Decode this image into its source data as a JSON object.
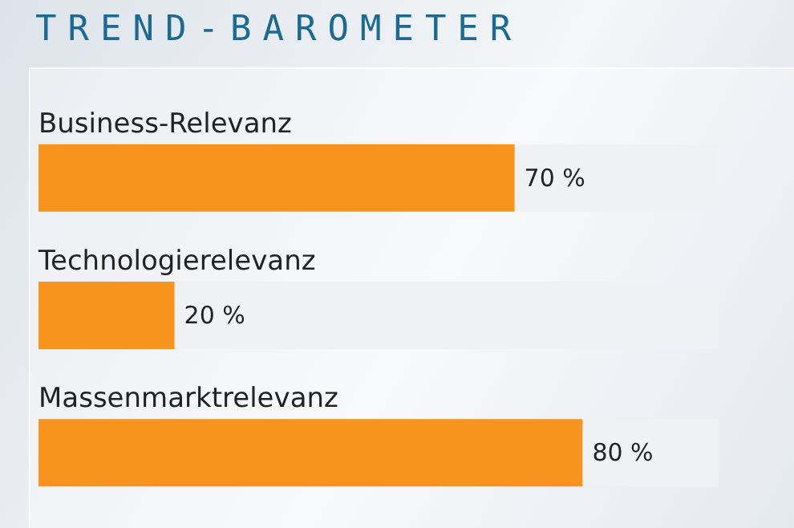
{
  "chart_data": {
    "type": "bar",
    "orientation": "horizontal",
    "title": "TREND-BAROMETER",
    "categories": [
      "Business-Relevanz",
      "Technologierelevanz",
      "Massenmarktrelevanz"
    ],
    "values": [
      70,
      20,
      80
    ],
    "color": "#f7941d",
    "value_labels": [
      "70 %",
      "20 %",
      "80 %"
    ],
    "xlim": [
      0,
      100
    ],
    "tick_labels": "y"
  }
}
